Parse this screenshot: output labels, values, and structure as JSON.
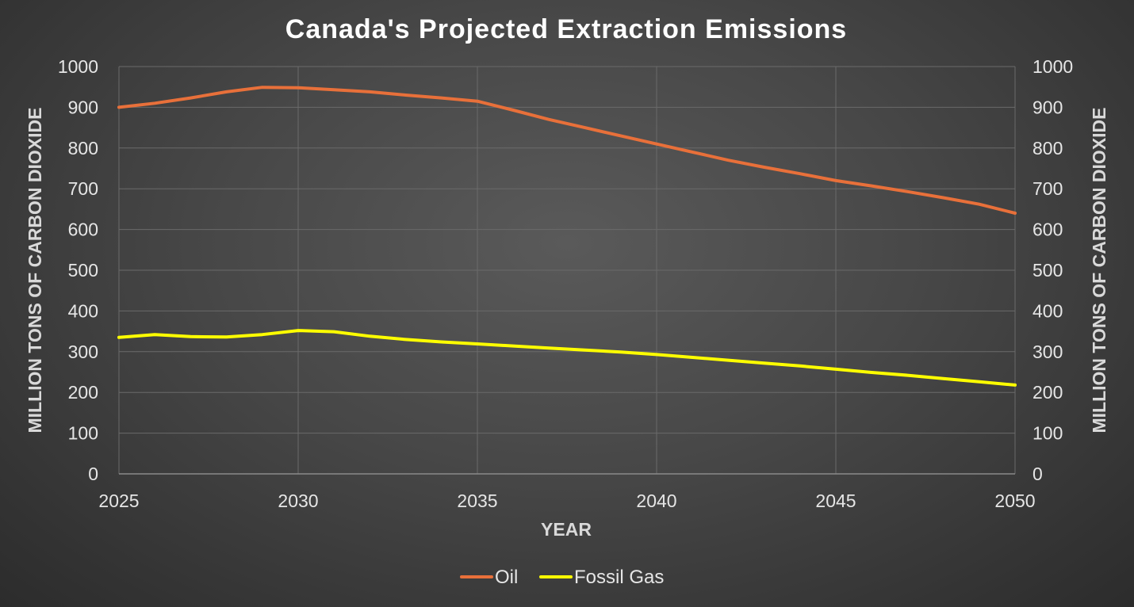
{
  "chart_data": {
    "type": "line",
    "title": "Canada's Projected Extraction Emissions",
    "xlabel": "YEAR",
    "ylabel": "MILLION TONS OF CARBON DIOXIDE",
    "ylabel_right": "MILLION TONS OF CARBON DIOXIDE",
    "xlim": [
      2025,
      2050
    ],
    "ylim": [
      0,
      1000
    ],
    "x_ticks": [
      2025,
      2030,
      2035,
      2040,
      2045,
      2050
    ],
    "y_ticks": [
      0,
      100,
      200,
      300,
      400,
      500,
      600,
      700,
      800,
      900,
      1000
    ],
    "grid": true,
    "legend_position": "bottom",
    "series": [
      {
        "name": "Oil",
        "color": "#e8703a",
        "x": [
          2025,
          2026,
          2027,
          2028,
          2029,
          2030,
          2031,
          2032,
          2033,
          2034,
          2035,
          2036,
          2037,
          2038,
          2039,
          2040,
          2041,
          2042,
          2043,
          2044,
          2045,
          2046,
          2047,
          2048,
          2049,
          2050
        ],
        "values": [
          900,
          910,
          923,
          938,
          949,
          948,
          943,
          938,
          930,
          923,
          915,
          893,
          870,
          850,
          830,
          810,
          790,
          770,
          753,
          737,
          720,
          707,
          693,
          678,
          662,
          640
        ]
      },
      {
        "name": "Fossil Gas",
        "color": "#ffff00",
        "x": [
          2025,
          2026,
          2027,
          2028,
          2029,
          2030,
          2031,
          2032,
          2033,
          2034,
          2035,
          2036,
          2037,
          2038,
          2039,
          2040,
          2041,
          2042,
          2043,
          2044,
          2045,
          2046,
          2047,
          2048,
          2049,
          2050
        ],
        "values": [
          335,
          342,
          337,
          336,
          342,
          352,
          349,
          338,
          330,
          324,
          319,
          314,
          309,
          304,
          299,
          293,
          286,
          279,
          272,
          265,
          257,
          249,
          242,
          234,
          226,
          218
        ]
      }
    ]
  }
}
